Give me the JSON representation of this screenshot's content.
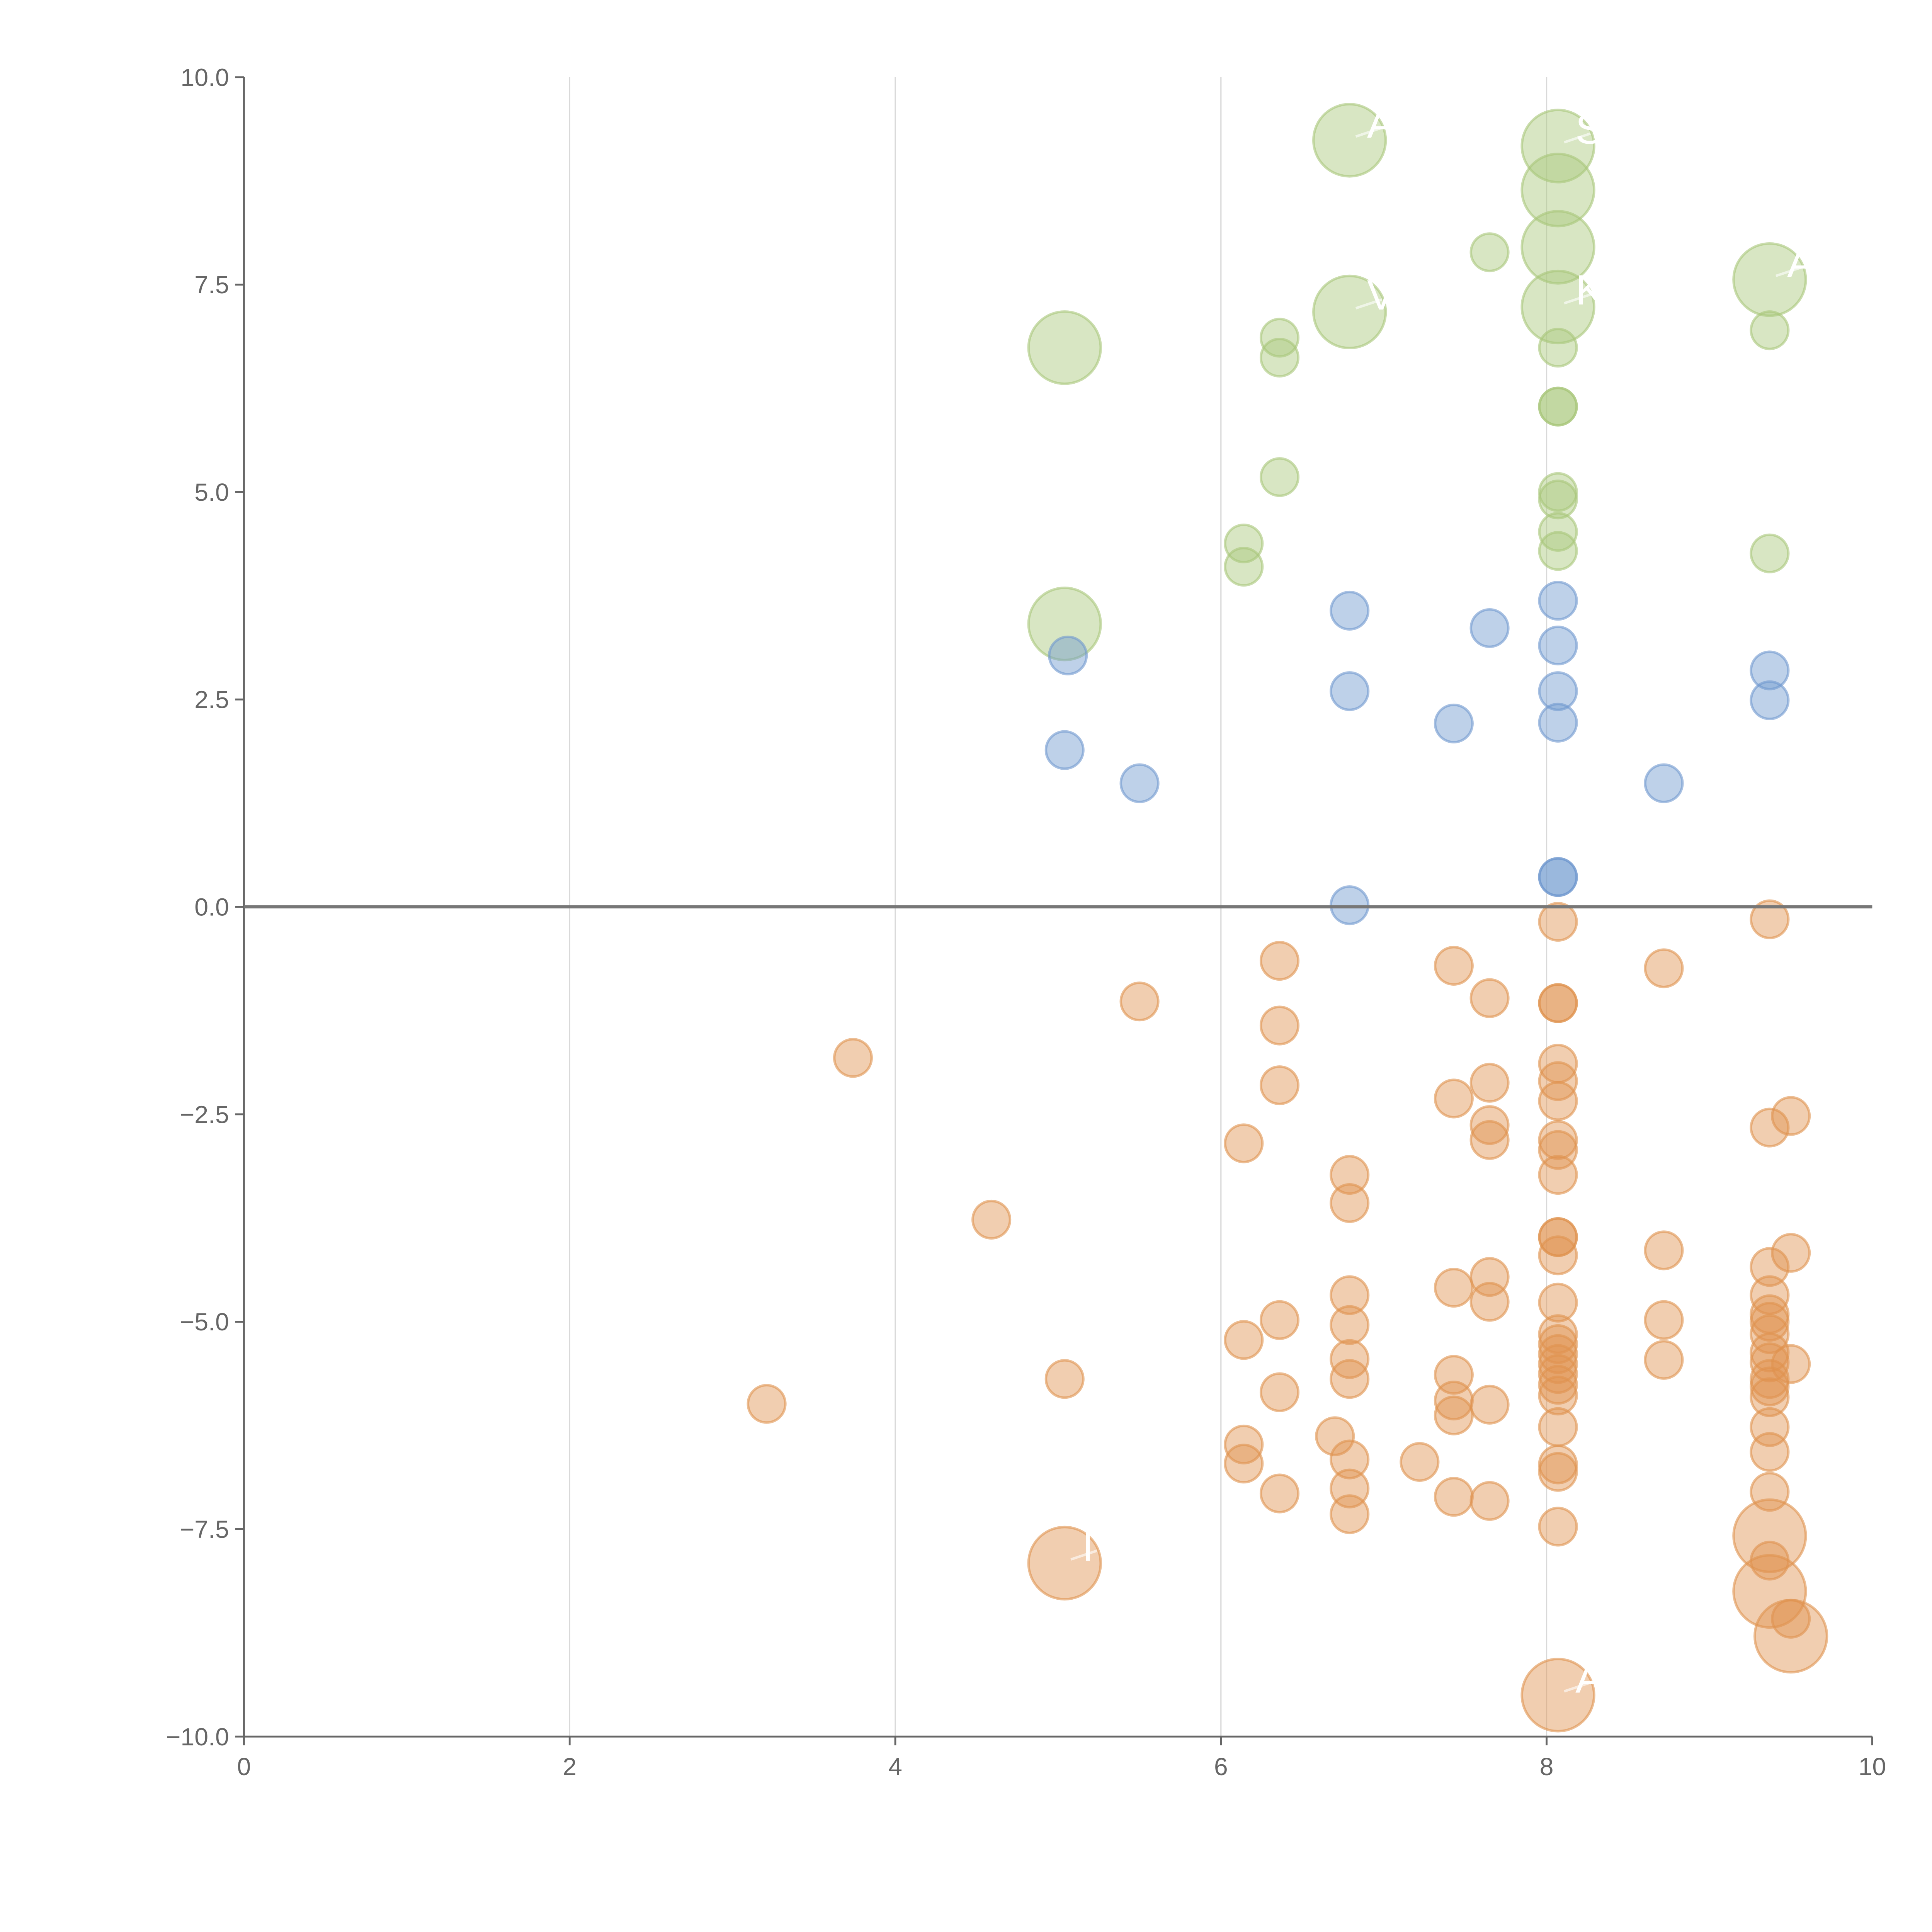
{
  "chart_data": {
    "type": "scatter",
    "title": "",
    "xlabel": "",
    "ylabel": "",
    "xlim": [
      0,
      10
    ],
    "ylim": [
      -10,
      10
    ],
    "x_ticks": [
      "0",
      "2",
      "4",
      "6",
      "8",
      "10"
    ],
    "y_ticks": [
      "−10.0",
      "−7.5",
      "−5.0",
      "−2.5",
      "0.0",
      "2.5",
      "5.0",
      "7.5",
      "10.0"
    ],
    "grid": "vertical",
    "reference_line_y": 0,
    "point_format": "[x, y, size] — size 1 = small bubble, 2 = large bubble",
    "series": [
      {
        "name": "green",
        "color": "#a9c77a",
        "points": [
          [
            6.79,
            9.24,
            2
          ],
          [
            8.07,
            9.17,
            2
          ],
          [
            8.07,
            8.64,
            2
          ],
          [
            8.07,
            7.95,
            2
          ],
          [
            8.07,
            7.23,
            2
          ],
          [
            6.79,
            7.17,
            2
          ],
          [
            9.37,
            7.56,
            2
          ],
          [
            5.04,
            6.74,
            2
          ],
          [
            5.04,
            3.41,
            2
          ],
          [
            7.65,
            7.89,
            1
          ],
          [
            6.36,
            6.86,
            1
          ],
          [
            6.36,
            6.62,
            1
          ],
          [
            9.37,
            6.95,
            1
          ],
          [
            8.07,
            6.74,
            1
          ],
          [
            8.07,
            6.03,
            1
          ],
          [
            8.07,
            6.03,
            1
          ],
          [
            6.36,
            5.18,
            1
          ],
          [
            8.07,
            5.0,
            1
          ],
          [
            8.07,
            4.91,
            1
          ],
          [
            8.07,
            4.52,
            1
          ],
          [
            8.07,
            4.29,
            1
          ],
          [
            6.14,
            4.38,
            1
          ],
          [
            6.14,
            4.1,
            1
          ],
          [
            9.37,
            4.26,
            1
          ]
        ]
      },
      {
        "name": "blue",
        "color": "#6f98cf",
        "points": [
          [
            6.79,
            3.57,
            1
          ],
          [
            7.65,
            3.36,
            1
          ],
          [
            8.07,
            3.69,
            1
          ],
          [
            8.07,
            3.15,
            1
          ],
          [
            8.07,
            2.6,
            1
          ],
          [
            8.07,
            2.22,
            1
          ],
          [
            5.06,
            3.03,
            1
          ],
          [
            6.79,
            2.6,
            1
          ],
          [
            7.43,
            2.21,
            1
          ],
          [
            9.37,
            2.85,
            1
          ],
          [
            9.37,
            2.49,
            1
          ],
          [
            5.04,
            1.89,
            1
          ],
          [
            5.5,
            1.49,
            1
          ],
          [
            8.72,
            1.49,
            1
          ],
          [
            8.07,
            0.36,
            1
          ],
          [
            8.07,
            0.36,
            1
          ],
          [
            6.79,
            0.02,
            1
          ]
        ]
      },
      {
        "name": "orange",
        "color": "#e0924f",
        "points": [
          [
            8.07,
            -0.18,
            1
          ],
          [
            9.37,
            -0.15,
            1
          ],
          [
            6.36,
            -0.65,
            1
          ],
          [
            7.43,
            -0.71,
            1
          ],
          [
            8.72,
            -0.74,
            1
          ],
          [
            7.65,
            -1.1,
            1
          ],
          [
            5.5,
            -1.14,
            1
          ],
          [
            8.07,
            -1.16,
            1
          ],
          [
            8.07,
            -1.16,
            1
          ],
          [
            6.36,
            -1.43,
            1
          ],
          [
            3.74,
            -1.82,
            1
          ],
          [
            8.07,
            -1.89,
            1
          ],
          [
            8.07,
            -2.1,
            1
          ],
          [
            6.36,
            -2.15,
            1
          ],
          [
            7.65,
            -2.12,
            1
          ],
          [
            8.07,
            -2.34,
            1
          ],
          [
            7.43,
            -2.31,
            1
          ],
          [
            9.5,
            -2.52,
            1
          ],
          [
            9.37,
            -2.66,
            1
          ],
          [
            7.65,
            -2.63,
            1
          ],
          [
            7.65,
            -2.81,
            1
          ],
          [
            8.07,
            -2.81,
            1
          ],
          [
            8.07,
            -2.93,
            1
          ],
          [
            6.14,
            -2.85,
            1
          ],
          [
            8.07,
            -3.23,
            1
          ],
          [
            6.79,
            -3.23,
            1
          ],
          [
            6.79,
            -3.57,
            1
          ],
          [
            4.59,
            -3.77,
            1
          ],
          [
            8.07,
            -3.98,
            1
          ],
          [
            8.07,
            -3.98,
            1
          ],
          [
            8.07,
            -4.2,
            1
          ],
          [
            8.72,
            -4.14,
            1
          ],
          [
            9.5,
            -4.17,
            1
          ],
          [
            9.37,
            -4.34,
            1
          ],
          [
            7.65,
            -4.46,
            1
          ],
          [
            7.43,
            -4.59,
            1
          ],
          [
            6.79,
            -4.68,
            1
          ],
          [
            9.37,
            -4.68,
            1
          ],
          [
            7.65,
            -4.76,
            1
          ],
          [
            8.07,
            -4.77,
            1
          ],
          [
            9.37,
            -4.91,
            1
          ],
          [
            6.36,
            -4.98,
            1
          ],
          [
            8.72,
            -4.98,
            1
          ],
          [
            9.37,
            -5.0,
            1
          ],
          [
            6.79,
            -5.04,
            1
          ],
          [
            9.37,
            -5.15,
            1
          ],
          [
            8.07,
            -5.15,
            1
          ],
          [
            8.07,
            -5.27,
            1
          ],
          [
            8.07,
            -5.39,
            1
          ],
          [
            8.07,
            -5.51,
            1
          ],
          [
            8.07,
            -5.63,
            1
          ],
          [
            6.14,
            -5.22,
            1
          ],
          [
            9.37,
            -5.37,
            1
          ],
          [
            9.37,
            -5.49,
            1
          ],
          [
            6.79,
            -5.45,
            1
          ],
          [
            8.72,
            -5.46,
            1
          ],
          [
            9.5,
            -5.51,
            1
          ],
          [
            5.04,
            -5.69,
            1
          ],
          [
            7.43,
            -5.64,
            1
          ],
          [
            6.79,
            -5.69,
            1
          ],
          [
            9.37,
            -5.69,
            1
          ],
          [
            9.37,
            -5.78,
            1
          ],
          [
            8.07,
            -5.76,
            1
          ],
          [
            6.36,
            -5.85,
            1
          ],
          [
            9.37,
            -5.91,
            1
          ],
          [
            3.21,
            -5.99,
            1
          ],
          [
            8.07,
            -5.89,
            1
          ],
          [
            7.43,
            -5.95,
            1
          ],
          [
            7.65,
            -6.0,
            1
          ],
          [
            7.43,
            -6.13,
            1
          ],
          [
            8.07,
            -6.27,
            1
          ],
          [
            9.37,
            -6.27,
            1
          ],
          [
            6.7,
            -6.38,
            1
          ],
          [
            6.14,
            -6.48,
            1
          ],
          [
            9.37,
            -6.57,
            1
          ],
          [
            6.79,
            -6.66,
            1
          ],
          [
            7.22,
            -6.69,
            1
          ],
          [
            6.14,
            -6.71,
            1
          ],
          [
            8.07,
            -6.72,
            1
          ],
          [
            8.07,
            -6.81,
            1
          ],
          [
            6.79,
            -7.01,
            1
          ],
          [
            6.36,
            -7.07,
            1
          ],
          [
            9.37,
            -7.05,
            1
          ],
          [
            7.43,
            -7.11,
            1
          ],
          [
            7.65,
            -7.16,
            1
          ],
          [
            6.79,
            -7.32,
            1
          ],
          [
            8.07,
            -7.47,
            1
          ],
          [
            9.37,
            -7.88,
            1
          ],
          [
            9.5,
            -8.58,
            1
          ],
          [
            5.04,
            -7.91,
            2
          ],
          [
            9.37,
            -7.58,
            2
          ],
          [
            9.37,
            -8.25,
            2
          ],
          [
            9.5,
            -8.79,
            2
          ],
          [
            8.07,
            -9.5,
            2
          ]
        ]
      }
    ],
    "annotations": [
      {
        "text": "A",
        "x": 6.79,
        "y": 9.24
      },
      {
        "text": "S",
        "x": 8.07,
        "y": 9.17
      },
      {
        "text": "V",
        "x": 6.79,
        "y": 7.17
      },
      {
        "text": "K",
        "x": 8.07,
        "y": 7.23
      },
      {
        "text": "A",
        "x": 9.37,
        "y": 7.56
      },
      {
        "text": "I",
        "x": 5.04,
        "y": -7.91
      },
      {
        "text": "A",
        "x": 8.07,
        "y": -9.5
      }
    ]
  }
}
